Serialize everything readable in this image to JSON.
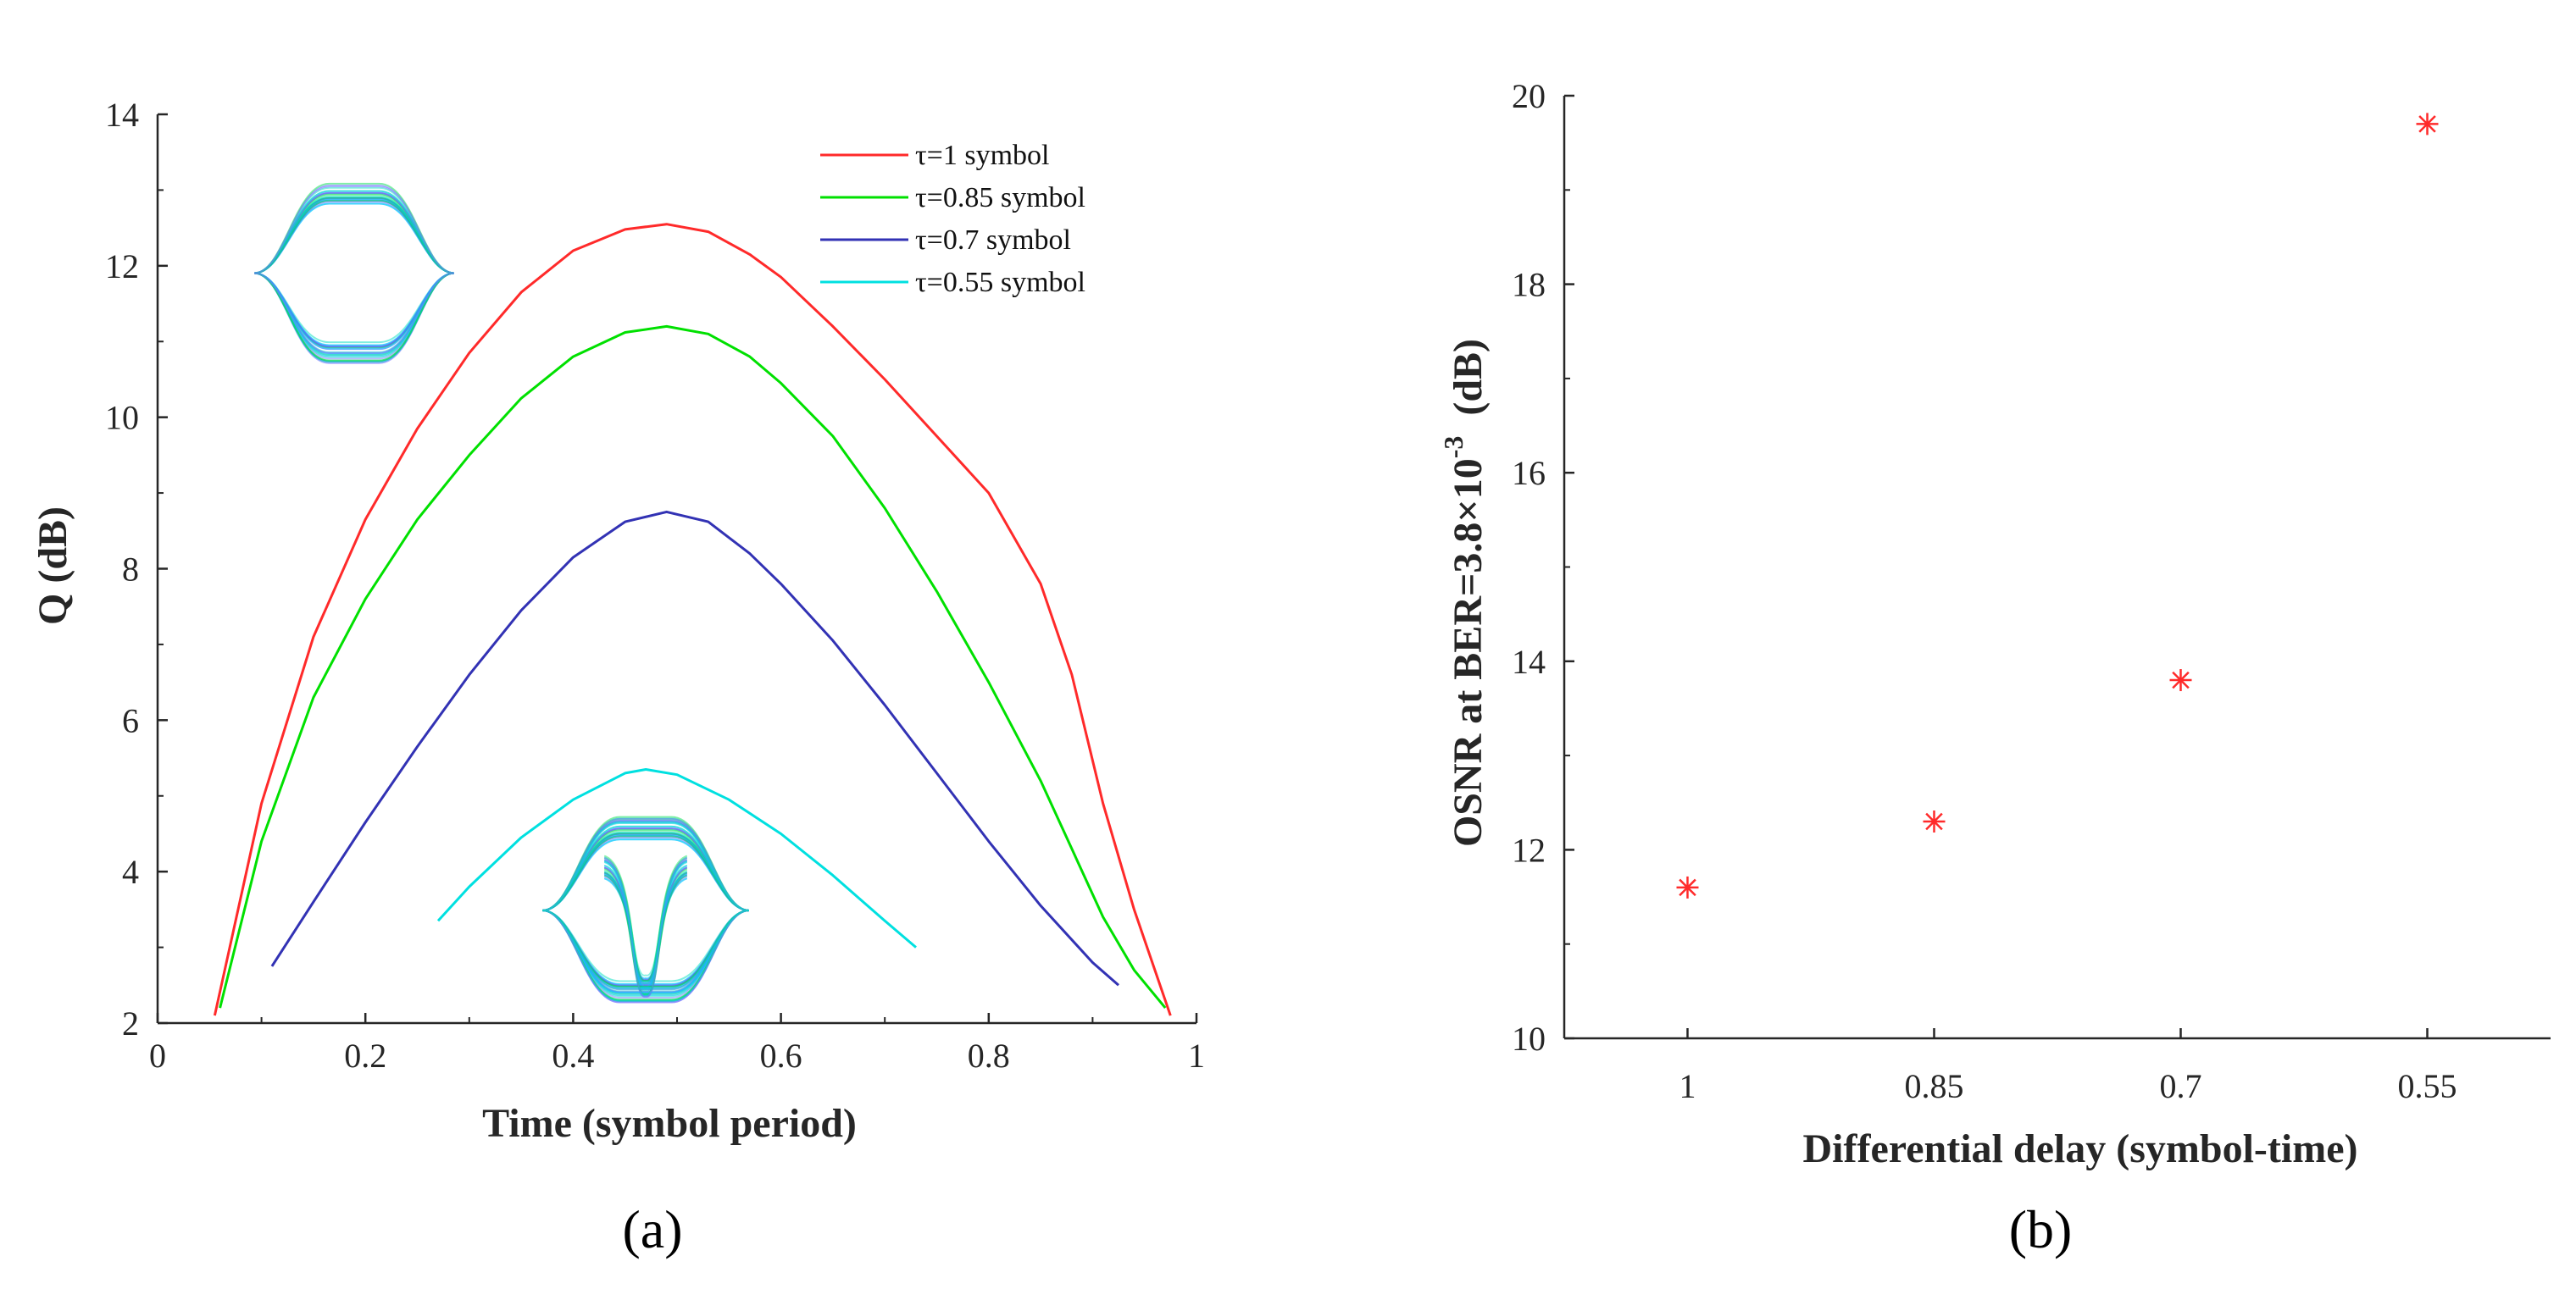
{
  "chart_data": [
    {
      "type": "line",
      "panel_label": "(a)",
      "xlabel": "Time (symbol period)",
      "ylabel": "Q (dB)",
      "xlim": [
        0,
        1
      ],
      "ylim": [
        2,
        14
      ],
      "x_ticks": [
        "0",
        "0.2",
        "0.4",
        "0.6",
        "0.8",
        "1"
      ],
      "y_ticks": [
        "2",
        "4",
        "6",
        "8",
        "10",
        "12",
        "14"
      ],
      "legend_position": "top-right",
      "grid": false,
      "series": [
        {
          "name": "τ=1 symbol",
          "color": "#ff2a2a",
          "x": [
            0.055,
            0.1,
            0.15,
            0.2,
            0.25,
            0.3,
            0.35,
            0.4,
            0.45,
            0.49,
            0.53,
            0.57,
            0.6,
            0.65,
            0.7,
            0.75,
            0.8,
            0.85,
            0.88,
            0.91,
            0.94,
            0.975
          ],
          "y": [
            2.1,
            4.9,
            7.1,
            8.65,
            9.85,
            10.85,
            11.65,
            12.2,
            12.48,
            12.55,
            12.45,
            12.15,
            11.85,
            11.2,
            10.5,
            9.75,
            9.0,
            7.8,
            6.6,
            4.9,
            3.5,
            2.1
          ]
        },
        {
          "name": "τ=0.85 symbol",
          "color": "#00e000",
          "x": [
            0.06,
            0.1,
            0.15,
            0.2,
            0.25,
            0.3,
            0.35,
            0.4,
            0.45,
            0.49,
            0.53,
            0.57,
            0.6,
            0.65,
            0.7,
            0.75,
            0.8,
            0.85,
            0.88,
            0.91,
            0.94,
            0.97
          ],
          "y": [
            2.2,
            4.4,
            6.3,
            7.6,
            8.65,
            9.5,
            10.25,
            10.8,
            11.12,
            11.2,
            11.1,
            10.8,
            10.45,
            9.75,
            8.8,
            7.7,
            6.5,
            5.2,
            4.3,
            3.4,
            2.7,
            2.2
          ]
        },
        {
          "name": "τ=0.7 symbol",
          "color": "#3232b4",
          "x": [
            0.11,
            0.15,
            0.2,
            0.25,
            0.3,
            0.35,
            0.4,
            0.45,
            0.49,
            0.53,
            0.57,
            0.6,
            0.65,
            0.7,
            0.75,
            0.8,
            0.85,
            0.9,
            0.925
          ],
          "y": [
            2.75,
            3.6,
            4.65,
            5.65,
            6.6,
            7.45,
            8.15,
            8.62,
            8.75,
            8.62,
            8.2,
            7.8,
            7.05,
            6.2,
            5.3,
            4.4,
            3.55,
            2.8,
            2.5
          ]
        },
        {
          "name": "τ=0.55 symbol",
          "color": "#00e0e0",
          "x": [
            0.27,
            0.3,
            0.35,
            0.4,
            0.45,
            0.47,
            0.5,
            0.55,
            0.6,
            0.65,
            0.7,
            0.73
          ],
          "y": [
            3.35,
            3.8,
            4.45,
            4.95,
            5.3,
            5.35,
            5.28,
            4.95,
            4.5,
            3.95,
            3.35,
            3.0
          ]
        }
      ]
    },
    {
      "type": "scatter",
      "panel_label": "(b)",
      "xlabel": "Differential delay (symbol-time)",
      "ylabel_main": "OSNR at BER=3.8×10",
      "ylabel_exponent": "-3",
      "ylabel_unit": "(dB)",
      "categories": [
        "1",
        "0.85",
        "0.7",
        "0.55"
      ],
      "values": [
        11.6,
        12.3,
        13.8,
        19.7
      ],
      "ylim": [
        10,
        20
      ],
      "y_ticks": [
        "10",
        "12",
        "14",
        "16",
        "18",
        "20"
      ],
      "marker": "asterisk",
      "marker_color": "#ff2a2a",
      "grid": false
    }
  ]
}
